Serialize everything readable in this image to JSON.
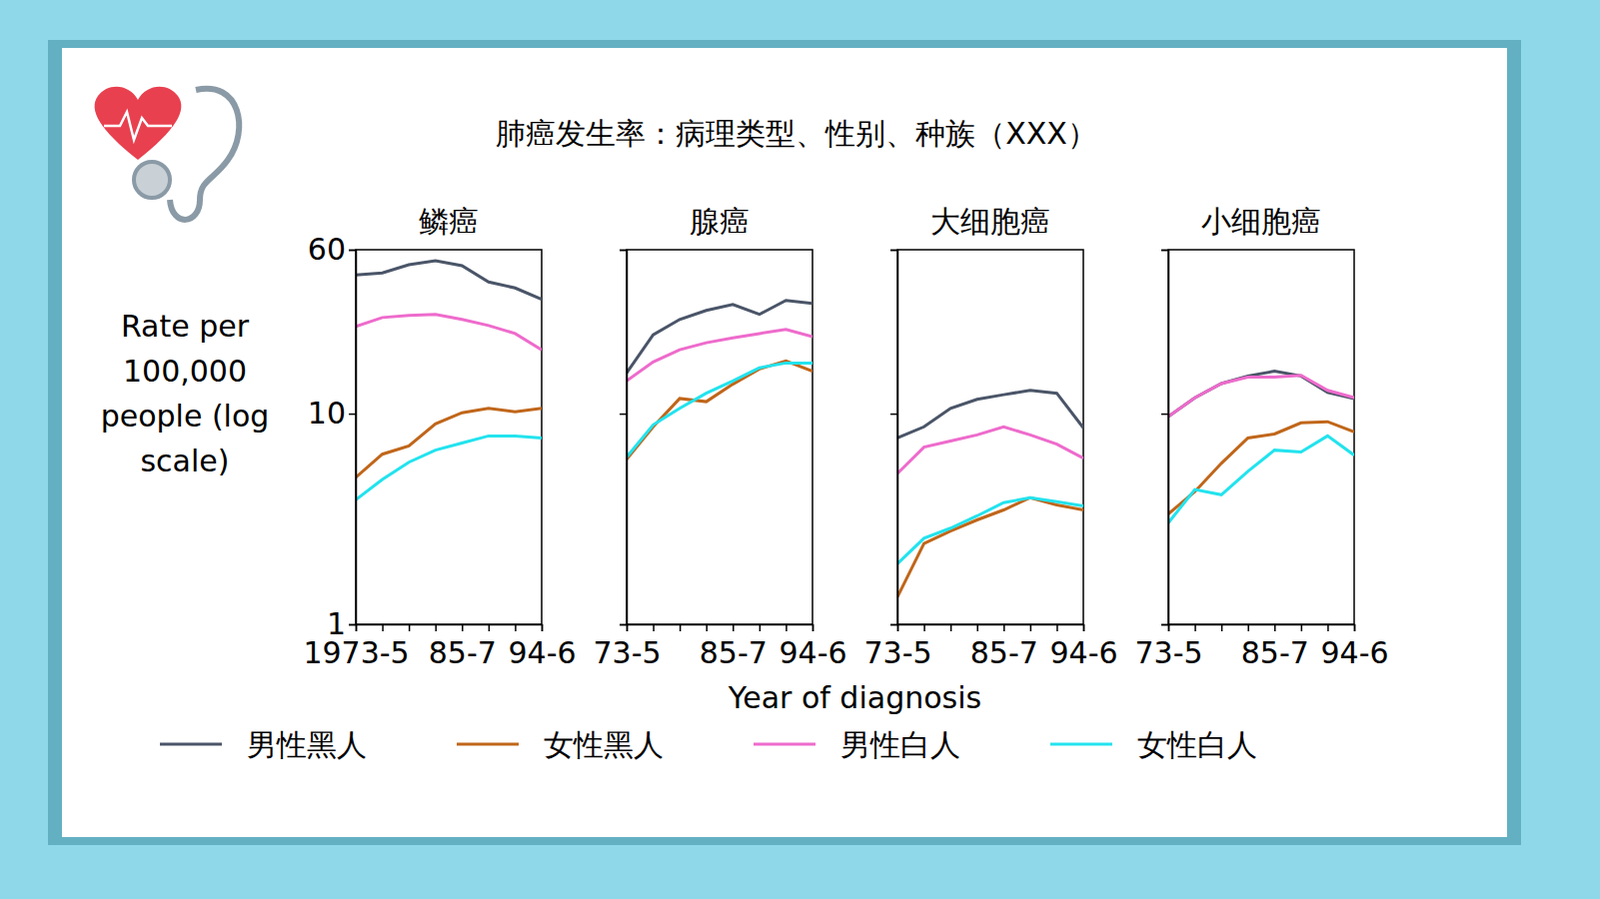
{
  "title": "肺癌发生率：病理类型、性别、种族（XXX）",
  "x_label": "Year of diagnosis",
  "y_label": "Rate per 100,000 people (log scale)",
  "chart_data": [
    {
      "type": "line",
      "title": "鳞癌",
      "log": "y",
      "legend": "bottom",
      "categories": [
        "1973-5",
        null,
        null,
        null,
        "85-7",
        null,
        null,
        "94-6"
      ],
      "ylim": [
        1,
        60
      ],
      "yticks": [
        1,
        10,
        60
      ],
      "series": [
        {
          "name": "男性黑人",
          "color": "#4a5568",
          "values": [
            45.6,
            46.6,
            50.9,
            53.2,
            50.4,
            42.2,
            39.5,
            34.9
          ]
        },
        {
          "name": "女性黑人",
          "color": "#c0661a",
          "values": [
            4.98,
            6.42,
            7.02,
            8.95,
            10.1,
            10.6,
            10.2,
            10.6
          ]
        },
        {
          "name": "男性白人",
          "color": "#ee6bcc",
          "values": [
            25.9,
            28.6,
            29.3,
            29.6,
            28.0,
            26.2,
            24.0,
            20.1
          ]
        },
        {
          "name": "女性白人",
          "color": "#22e3ee",
          "values": [
            3.9,
            4.87,
            5.88,
            6.71,
            7.25,
            7.84,
            7.84,
            7.67
          ]
        }
      ]
    },
    {
      "type": "line",
      "title": "腺癌",
      "log": "y",
      "tick_labels": "x",
      "categories": [
        "73-5",
        null,
        null,
        null,
        "85-7",
        null,
        null,
        "94-6"
      ],
      "ylim": [
        1,
        60
      ],
      "yticks": [
        1,
        10,
        60
      ],
      "series": [
        {
          "name": "男性黑人",
          "color": "#4a5568",
          "values": [
            15.6,
            23.7,
            28.0,
            30.9,
            33.0,
            29.6,
            34.5,
            33.4
          ]
        },
        {
          "name": "女性黑人",
          "color": "#c0661a",
          "values": [
            6.08,
            8.66,
            11.8,
            11.4,
            13.8,
            16.3,
            17.8,
            15.9
          ]
        },
        {
          "name": "男性白人",
          "color": "#ee6bcc",
          "values": [
            14.3,
            17.6,
            20.1,
            21.7,
            22.9,
            24.0,
            25.1,
            23.2
          ]
        },
        {
          "name": "女性白人",
          "color": "#22e3ee",
          "values": [
            6.21,
            8.85,
            10.6,
            12.5,
            14.3,
            16.5,
            17.4,
            17.4
          ]
        }
      ]
    },
    {
      "type": "line",
      "title": "大细胞癌",
      "log": "y",
      "tick_labels": "x",
      "categories": [
        "73-5",
        null,
        null,
        null,
        "85-7",
        null,
        null,
        "94-6"
      ],
      "ylim": [
        1,
        60
      ],
      "yticks": [
        1,
        10,
        60
      ],
      "series": [
        {
          "name": "男性黑人",
          "color": "#4a5568",
          "values": [
            7.67,
            8.66,
            10.6,
            11.7,
            12.3,
            12.9,
            12.5,
            8.57
          ]
        },
        {
          "name": "女性黑人",
          "color": "#c0661a",
          "values": [
            1.35,
            2.42,
            2.77,
            3.13,
            3.49,
            3.99,
            3.69,
            3.49
          ]
        },
        {
          "name": "男性白人",
          "color": "#ee6bcc",
          "values": [
            5.2,
            6.94,
            7.42,
            7.93,
            8.66,
            7.93,
            7.17,
            6.14
          ]
        },
        {
          "name": "女性白人",
          "color": "#22e3ee",
          "values": [
            1.94,
            2.56,
            2.86,
            3.27,
            3.78,
            3.99,
            3.82,
            3.65
          ]
        }
      ]
    },
    {
      "type": "line",
      "title": "小细胞癌",
      "log": "y",
      "tick_labels": "x",
      "categories": [
        "73-5",
        null,
        null,
        null,
        "85-7",
        null,
        null,
        "94-6"
      ],
      "ylim": [
        1,
        60
      ],
      "yticks": [
        1,
        10,
        60
      ],
      "series": [
        {
          "name": "男性黑人",
          "color": "#4a5568",
          "values": [
            9.68,
            11.9,
            13.9,
            15.1,
            15.9,
            15.1,
            12.6,
            11.8
          ]
        },
        {
          "name": "女性黑人",
          "color": "#c0661a",
          "values": [
            3.34,
            4.26,
            5.81,
            7.67,
            8.01,
            9.05,
            9.16,
            8.19
          ]
        },
        {
          "name": "男性白人",
          "color": "#ee6bcc",
          "values": [
            9.68,
            11.9,
            13.9,
            14.9,
            14.9,
            15.2,
            12.9,
            11.9
          ]
        },
        {
          "name": "女性白人",
          "color": "#22e3ee",
          "values": [
            3.03,
            4.36,
            4.12,
            5.32,
            6.71,
            6.57,
            7.84,
            6.35
          ]
        }
      ]
    }
  ]
}
